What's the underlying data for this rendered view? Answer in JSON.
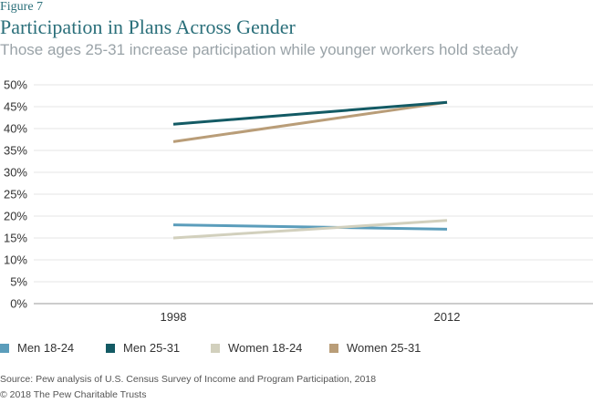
{
  "figure_label": "Figure 7",
  "source": "Source: Pew analysis of U.S. Census Survey of Income and Program Participation, 2018",
  "copyright": "© 2018 The Pew Charitable Trusts",
  "colors": {
    "men_18_24": "#5b9dbb",
    "men_25_31": "#135a64",
    "women_18_24": "#d2d0bd",
    "women_25_31": "#b99d78",
    "title": "#2a6f7a",
    "subtitle": "#9aa3a8",
    "grid": "#e6e6e6",
    "axis": "#999999"
  },
  "chart_data": {
    "type": "line",
    "title": "Participation in Plans Across Gender",
    "subtitle": "Those ages 25-31 increase participation while younger workers hold steady",
    "x": [
      "1998",
      "2012"
    ],
    "xlabel": "",
    "ylabel": "",
    "ylim": [
      0,
      50
    ],
    "yticks": [
      "0%",
      "5%",
      "10%",
      "15%",
      "20%",
      "25%",
      "30%",
      "35%",
      "40%",
      "45%",
      "50%"
    ],
    "grid": true,
    "legend_position": "bottom",
    "series": [
      {
        "name": "Men 18-24",
        "values": [
          18,
          17
        ],
        "color": "#5b9dbb"
      },
      {
        "name": "Men 25-31",
        "values": [
          41,
          46
        ],
        "color": "#135a64"
      },
      {
        "name": "Women 18-24",
        "values": [
          15,
          19
        ],
        "color": "#d2d0bd"
      },
      {
        "name": "Women 25-31",
        "values": [
          37,
          46
        ],
        "color": "#b99d78"
      }
    ]
  }
}
